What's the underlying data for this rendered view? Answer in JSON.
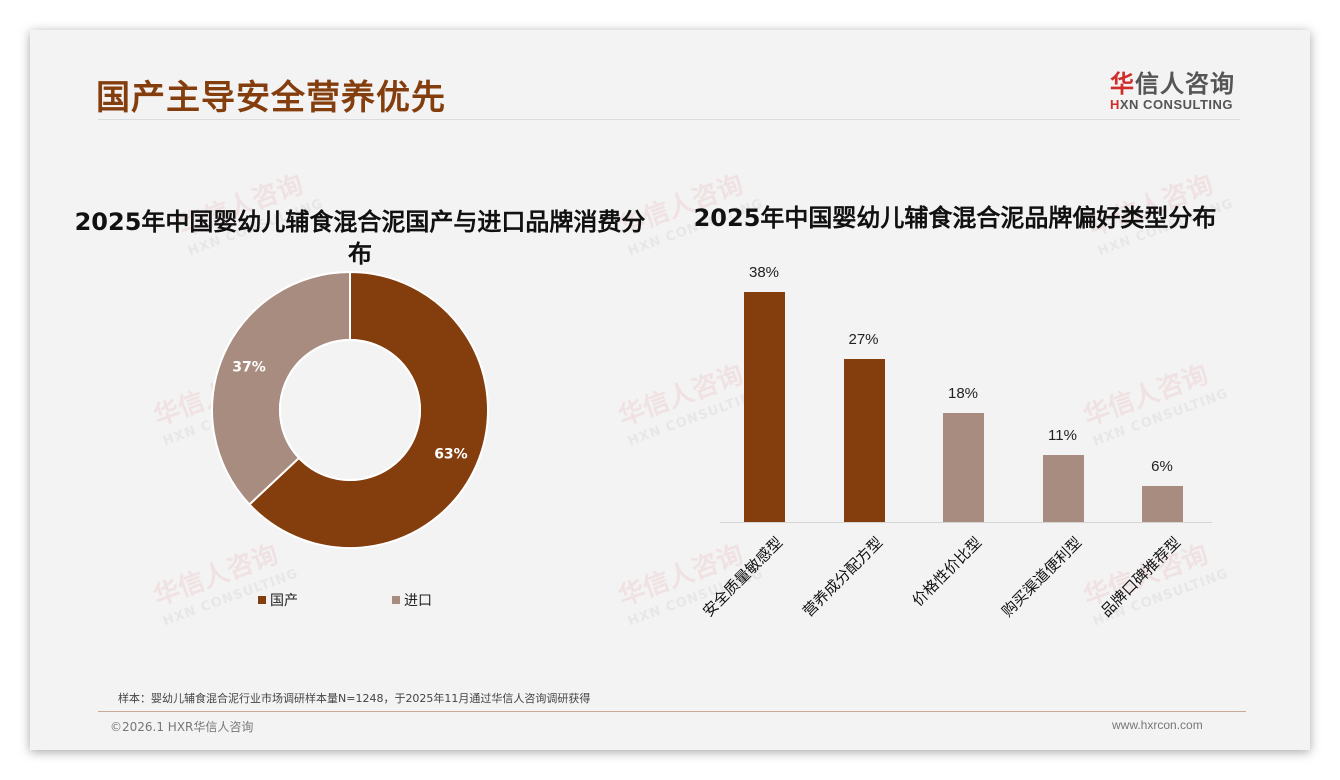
{
  "header": {
    "title": "国产主导安全营养优先",
    "logo": {
      "cn_mark": "华",
      "cn_rest": "信人咨询",
      "en_mark": "H",
      "en_rest": "XN CONSULTING"
    }
  },
  "watermark": {
    "cn": "华信人咨询",
    "en": "HXN CONSULTING"
  },
  "colors": {
    "primary": "#843e0e",
    "secondary": "#a98c80",
    "title": "#843e0e",
    "background": "#f3f3f3"
  },
  "chart_data": [
    {
      "type": "pie",
      "subtype": "donut",
      "title": "2025年中国婴幼儿辅食混合泥国产与进口品牌消费分布",
      "title_line1": "2025年中国婴幼儿辅食混合泥国产与进口品牌消费分",
      "title_line2": "布",
      "categories": [
        "国产",
        "进口"
      ],
      "values": [
        63,
        37
      ],
      "labels": [
        "63%",
        "37%"
      ],
      "colors": [
        "#843e0e",
        "#a98c80"
      ],
      "legend_position": "bottom"
    },
    {
      "type": "bar",
      "title": "2025年中国婴幼儿辅食混合泥品牌偏好类型分布",
      "categories": [
        "安全质量敏感型",
        "营养成分配方型",
        "价格性价比型",
        "购买渠道便利型",
        "品牌口碑推荐型"
      ],
      "values": [
        38,
        27,
        18,
        11,
        6
      ],
      "labels": [
        "38%",
        "27%",
        "18%",
        "11%",
        "6%"
      ],
      "colors": [
        "#843e0e",
        "#843e0e",
        "#a98c80",
        "#a98c80",
        "#a98c80"
      ],
      "xlabel": "",
      "ylabel": "",
      "ylim": [
        0,
        40
      ],
      "grid": false
    }
  ],
  "footer": {
    "note": "样本：婴幼儿辅食混合泥行业市场调研样本量N=1248，于2025年11月通过华信人咨询调研获得",
    "copyright": "©2026.1 HXR华信人咨询",
    "website": "www.hxrcon.com"
  }
}
